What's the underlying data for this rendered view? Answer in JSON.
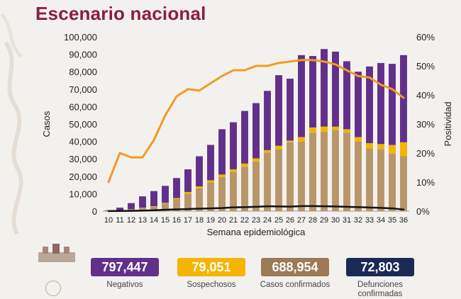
{
  "header": {
    "title": "Escenario nacional"
  },
  "chart_data": {
    "type": "bar",
    "stacked": true,
    "xlabel": "Semana epidemiológica",
    "ylabel": "Casos",
    "y2label": "Positividad",
    "ylim": [
      0,
      100000
    ],
    "y2lim": [
      0,
      60
    ],
    "yticks": [
      "0",
      "10,000",
      "20,000",
      "30,000",
      "40,000",
      "50,000",
      "60,000",
      "70,000",
      "80,000",
      "90,000",
      "100,000"
    ],
    "y2ticks": [
      "0%",
      "10%",
      "20%",
      "30%",
      "40%",
      "50%",
      "60%"
    ],
    "categories": [
      "10",
      "11",
      "12",
      "13",
      "14",
      "15",
      "16",
      "17",
      "18",
      "19",
      "20",
      "21",
      "22",
      "23",
      "24",
      "25",
      "26",
      "27",
      "28",
      "29",
      "30",
      "31",
      "32",
      "33",
      "34",
      "35",
      "36"
    ],
    "series": [
      {
        "kind": "bar",
        "color": "#b8966a",
        "values": [
          200,
          500,
          1000,
          1800,
          2500,
          4500,
          7000,
          10000,
          13000,
          16500,
          19500,
          22500,
          25500,
          28500,
          33500,
          35500,
          39500,
          40000,
          45000,
          45500,
          46500,
          45000,
          40000,
          36000,
          35500,
          33000,
          31500
        ]
      },
      {
        "kind": "bar",
        "color": "#f4b400",
        "values": [
          0,
          0,
          100,
          200,
          300,
          300,
          500,
          1000,
          1200,
          1200,
          1500,
          1500,
          1800,
          1800,
          1500,
          2000,
          1000,
          2500,
          3000,
          3000,
          2000,
          2000,
          2500,
          3000,
          3000,
          5000,
          8000
        ]
      },
      {
        "kind": "bar",
        "color": "#62308a",
        "values": [
          300,
          1500,
          3500,
          6500,
          8700,
          9700,
          11500,
          13000,
          17300,
          20300,
          26000,
          27000,
          30200,
          31700,
          34000,
          40500,
          35500,
          47000,
          41000,
          44500,
          43000,
          39000,
          37500,
          44000,
          46500,
          46500,
          50000
        ]
      },
      {
        "kind": "line",
        "color": "#111111",
        "values": [
          50,
          100,
          150,
          300,
          500,
          800,
          1000,
          1200,
          1400,
          1600,
          1800,
          2200,
          2300,
          2500,
          2800,
          2700,
          2600,
          2900,
          2900,
          2800,
          2700,
          2500,
          2300,
          2100,
          1900,
          1600,
          900
        ]
      },
      {
        "kind": "line",
        "axis": "right",
        "color": "#f39a1e",
        "values": [
          10,
          20,
          18.5,
          18.5,
          24.5,
          33,
          39.5,
          42,
          41.5,
          44,
          46.5,
          48.5,
          48.5,
          50,
          50,
          51,
          51.5,
          52,
          52,
          51.5,
          50.5,
          48.5,
          46.5,
          46,
          43.5,
          42,
          39
        ]
      }
    ]
  },
  "summary": [
    {
      "value": "797,447",
      "label": "Negativos",
      "bg": "#62308a",
      "fg": "#ffffff"
    },
    {
      "value": "79,051",
      "label": "Sospechosos",
      "bg": "#f4b400",
      "fg": "#ffffff"
    },
    {
      "value": "688,954",
      "label": "Casos confirmados",
      "bg": "#9c7a55",
      "fg": "#ffffff"
    },
    {
      "value": "72,803",
      "label": "Defunciones confirmadas",
      "bg": "#1b2a55",
      "fg": "#ffffff"
    }
  ]
}
